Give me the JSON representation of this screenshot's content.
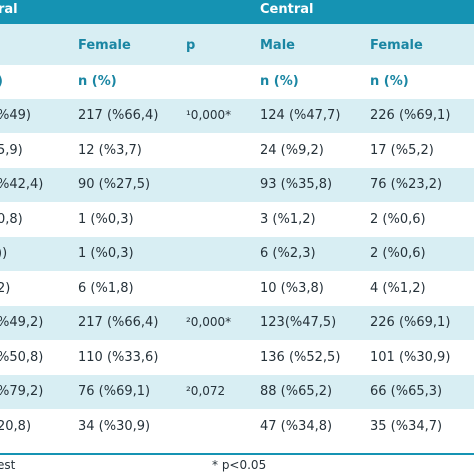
{
  "group_header": {
    "left_label": "ral",
    "right_label": "Central"
  },
  "subheader": {
    "col2": "Female",
    "col3": "p",
    "col4": "Male",
    "col5": "Female"
  },
  "units": {
    "col1": ")",
    "col2": "n (%)",
    "col4": "n (%)",
    "col5": "n (%)"
  },
  "rows": [
    {
      "c1": "%49)",
      "c2": "217 (%66,4)",
      "c3": "¹0,000*",
      "c4": "124 (%47,7)",
      "c5": "226 (%69,1)"
    },
    {
      "c1": "5,9)",
      "c2": "12 (%3,7)",
      "c3": "",
      "c4": "24 (%9,2)",
      "c5": "17 (%5,2)"
    },
    {
      "c1": "%42,4)",
      "c2": "90 (%27,5)",
      "c3": "",
      "c4": "93 (%35,8)",
      "c5": "76 (%23,2)"
    },
    {
      "c1": "0,8)",
      "c2": "1 (%0,3)",
      "c3": "",
      "c4": "3 (%1,2)",
      "c5": "2 (%0,6)"
    },
    {
      "c1": "))",
      "c2": "1 (%0,3)",
      "c3": "",
      "c4": "6 (%2,3)",
      "c5": "2 (%0,6)"
    },
    {
      "c1": "2)",
      "c2": "6 (%1,8)",
      "c3": "",
      "c4": "10 (%3,8)",
      "c5": "4 (%1,2)"
    },
    {
      "c1": "%49,2)",
      "c2": "217 (%66,4)",
      "c3": "²0,000*",
      "c4": "123(%47,5)",
      "c5": "226 (%69,1)"
    },
    {
      "c1": "%50,8)",
      "c2": "110 (%33,6)",
      "c3": "",
      "c4": "136 (%52,5)",
      "c5": "101 (%30,9)"
    },
    {
      "c1": "%79,2)",
      "c2": "76 (%69,1)",
      "c3": "²0,072",
      "c4": "88 (%65,2)",
      "c5": "66 (%65,3)"
    },
    {
      "c1": "20,8)",
      "c2": "34 (%30,9)",
      "c3": "",
      "c4": "47 (%34,8)",
      "c5": "35 (%34,7)"
    }
  ],
  "footer": {
    "left": "est",
    "note": "* p<0.05"
  }
}
